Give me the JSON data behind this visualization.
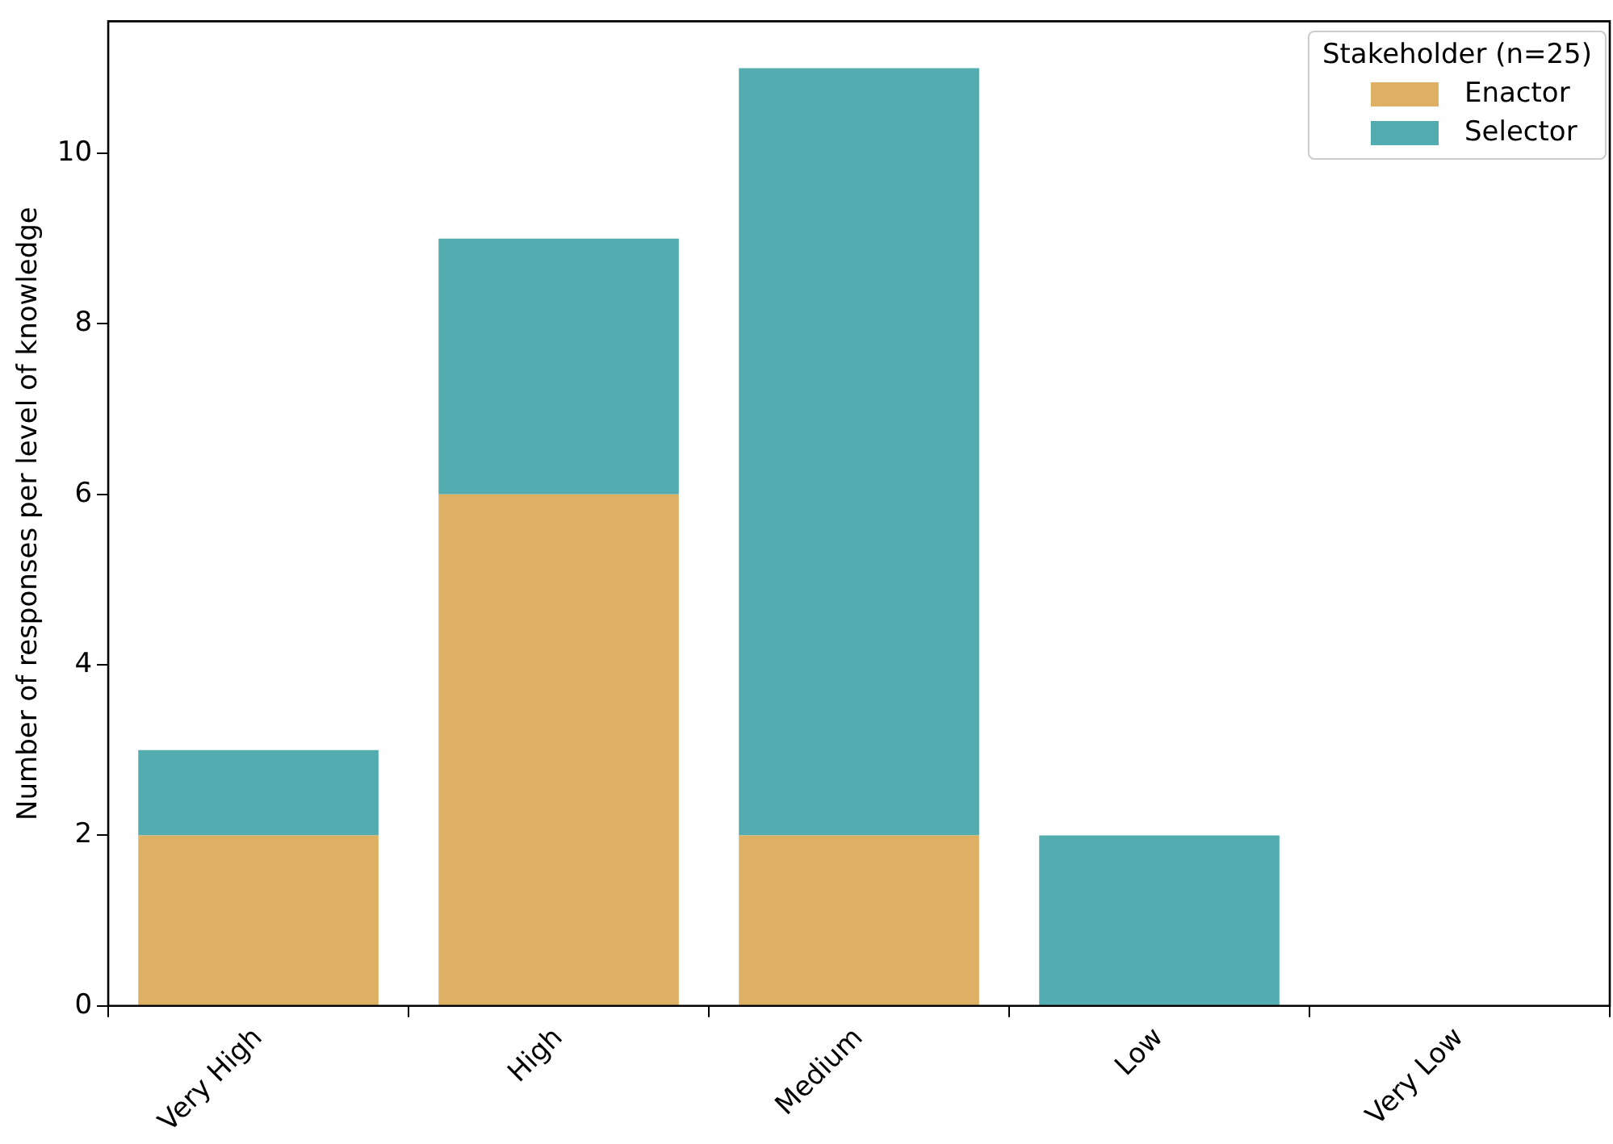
{
  "chart_data": {
    "type": "bar",
    "stacked": true,
    "ylabel": "Number of responses per level of knowledge",
    "legend_title": "Stakeholder (n=25)",
    "legend": "top right",
    "grid": false,
    "categories": [
      "Very High",
      "High",
      "Medium",
      "Low",
      "Very Low"
    ],
    "series": [
      {
        "name": "Enactor",
        "color": "#ddb063",
        "values": [
          2,
          6,
          2,
          0,
          0
        ]
      },
      {
        "name": "Selector",
        "color": "#53adb0",
        "values": [
          1,
          3,
          9,
          2,
          0
        ]
      }
    ],
    "ylim": [
      0,
      11.55
    ],
    "yticks": [
      0,
      2,
      4,
      6,
      8,
      10
    ]
  }
}
